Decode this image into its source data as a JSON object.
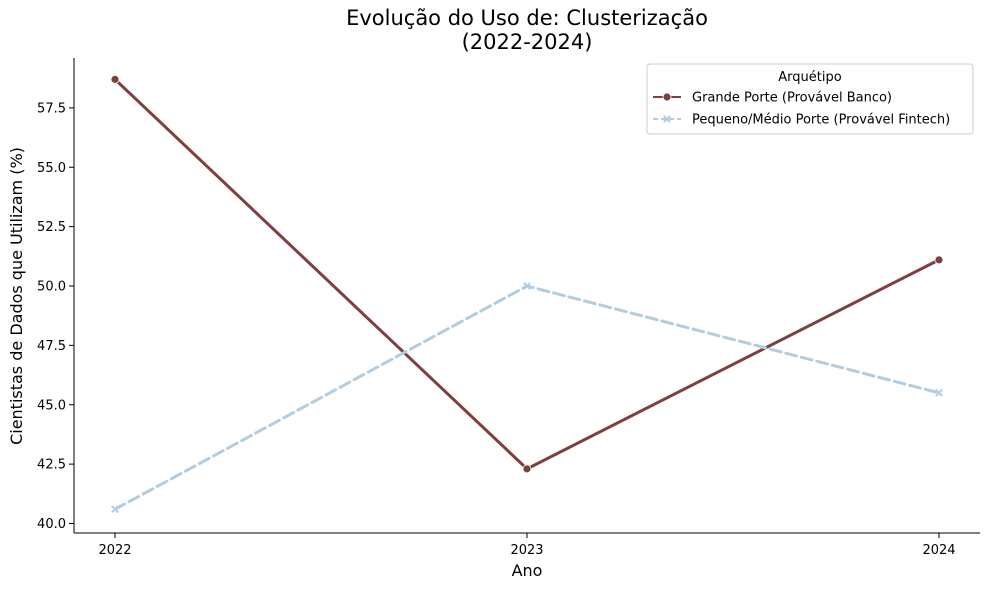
{
  "chart_data": {
    "type": "line",
    "title_line1": "Evolução do Uso de: Clusterização",
    "title_line2": "(2022-2024)",
    "xlabel": "Ano",
    "ylabel": "Cientistas de Dados que Utilizam (%)",
    "x": [
      "2022",
      "2023",
      "2024"
    ],
    "ylim": [
      39.6,
      59.6
    ],
    "yticks": [
      40.0,
      42.5,
      45.0,
      47.5,
      50.0,
      52.5,
      55.0,
      57.5
    ],
    "ytick_labels": [
      "40.0",
      "42.5",
      "45.0",
      "47.5",
      "50.0",
      "52.5",
      "55.0",
      "57.5"
    ],
    "grid": false,
    "legend": {
      "title": "Arquétipo",
      "placement": "top-right"
    },
    "series": [
      {
        "name": "Grande Porte (Provável Banco)",
        "values": [
          58.7,
          42.3,
          51.1
        ],
        "color": "#7f3f3f",
        "dash": "solid",
        "marker": "circle"
      },
      {
        "name": "Pequeno/Médio Porte (Provável Fintech)",
        "values": [
          40.6,
          50.0,
          45.5
        ],
        "color": "#b3cde0",
        "dash": "dashed",
        "marker": "x"
      }
    ]
  }
}
